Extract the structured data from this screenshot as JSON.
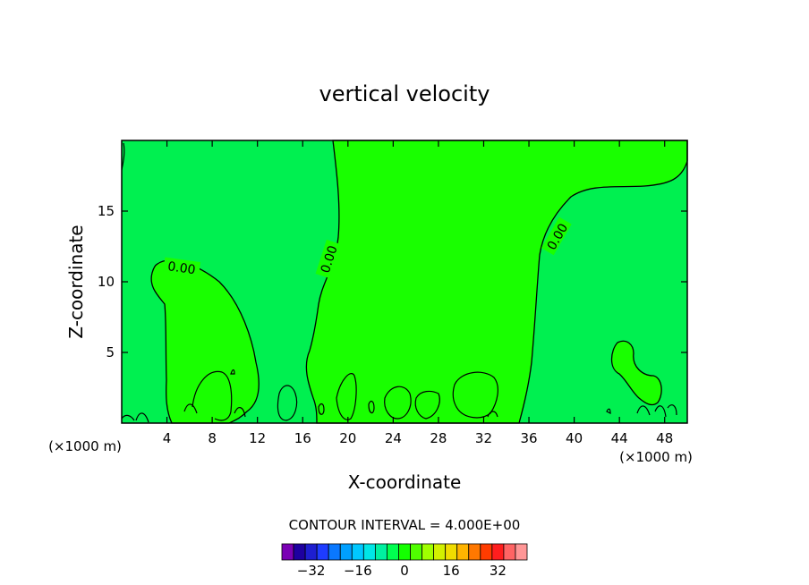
{
  "chart_data": {
    "type": "contour",
    "title": "vertical velocity",
    "xlabel": "X-coordinate",
    "ylabel": "Z-coordinate",
    "x_unit_left": "(×1000 m)",
    "x_unit_right": "(×1000 m)",
    "xlim": [
      0,
      50
    ],
    "ylim": [
      0,
      20
    ],
    "x_ticks": [
      4,
      8,
      12,
      16,
      20,
      24,
      28,
      32,
      36,
      40,
      44,
      48
    ],
    "y_ticks": [
      5,
      10,
      15
    ],
    "contour_interval_text": "CONTOUR INTERVAL = 4.000E+00",
    "contour_labels": [
      {
        "text": "0.00",
        "x": 5.3,
        "y": 11.0,
        "angle_deg": 8
      },
      {
        "text": "0.00",
        "x": 18.3,
        "y": 11.6,
        "angle_deg": -72
      },
      {
        "text": "0.00",
        "x": 38.5,
        "y": 13.2,
        "angle_deg": -60
      }
    ],
    "colorbar": {
      "colors": [
        "#7a00b4",
        "#1e00a0",
        "#1e1ed0",
        "#1e3cff",
        "#0a78ff",
        "#00a0ff",
        "#00c8ff",
        "#00e6e6",
        "#00f0a0",
        "#00ff50",
        "#14ff00",
        "#50ff00",
        "#a0ff00",
        "#d2f000",
        "#f0dc00",
        "#ffb400",
        "#ff7800",
        "#ff3c00",
        "#ff1e1e",
        "#ff6464",
        "#ff9696"
      ],
      "tick_labels": [
        "−32",
        "−16",
        "0",
        "16",
        "32"
      ],
      "tick_values": [
        -32,
        -16,
        0,
        16,
        32
      ]
    },
    "regions": {
      "positive_color": "#19ff00",
      "negative_color": "#00f050"
    }
  }
}
